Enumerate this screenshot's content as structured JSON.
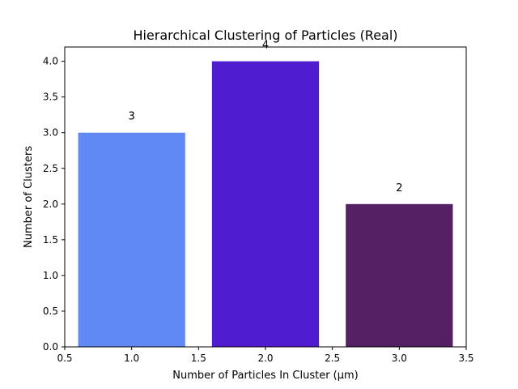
{
  "chart_data": {
    "type": "bar",
    "title": "Hierarchical Clustering of Particles (Real)",
    "xlabel": "Number of Particles In Cluster (µm)",
    "ylabel": "Number of Clusters",
    "x": [
      1,
      2,
      3
    ],
    "values": [
      3,
      4,
      2
    ],
    "bar_width": 0.8,
    "bar_labels": [
      "3",
      "4",
      "2"
    ],
    "colors": [
      "#6189f4",
      "#4f1ccf",
      "#532063"
    ],
    "xlim": [
      0.5,
      3.5
    ],
    "ylim": [
      0,
      4.2
    ],
    "xticks": [
      0.5,
      1.0,
      1.5,
      2.0,
      2.5,
      3.0,
      3.5
    ],
    "xtick_labels": [
      "0.5",
      "1.0",
      "1.5",
      "2.0",
      "2.5",
      "3.0",
      "3.5"
    ],
    "yticks": [
      0,
      0.5,
      1.0,
      1.5,
      2.0,
      2.5,
      3.0,
      3.5,
      4.0
    ],
    "ytick_labels": [
      "0.0",
      "0.5",
      "1.0",
      "1.5",
      "2.0",
      "2.5",
      "3.0",
      "3.5",
      "4.0"
    ],
    "grid": false,
    "legend": "none"
  }
}
